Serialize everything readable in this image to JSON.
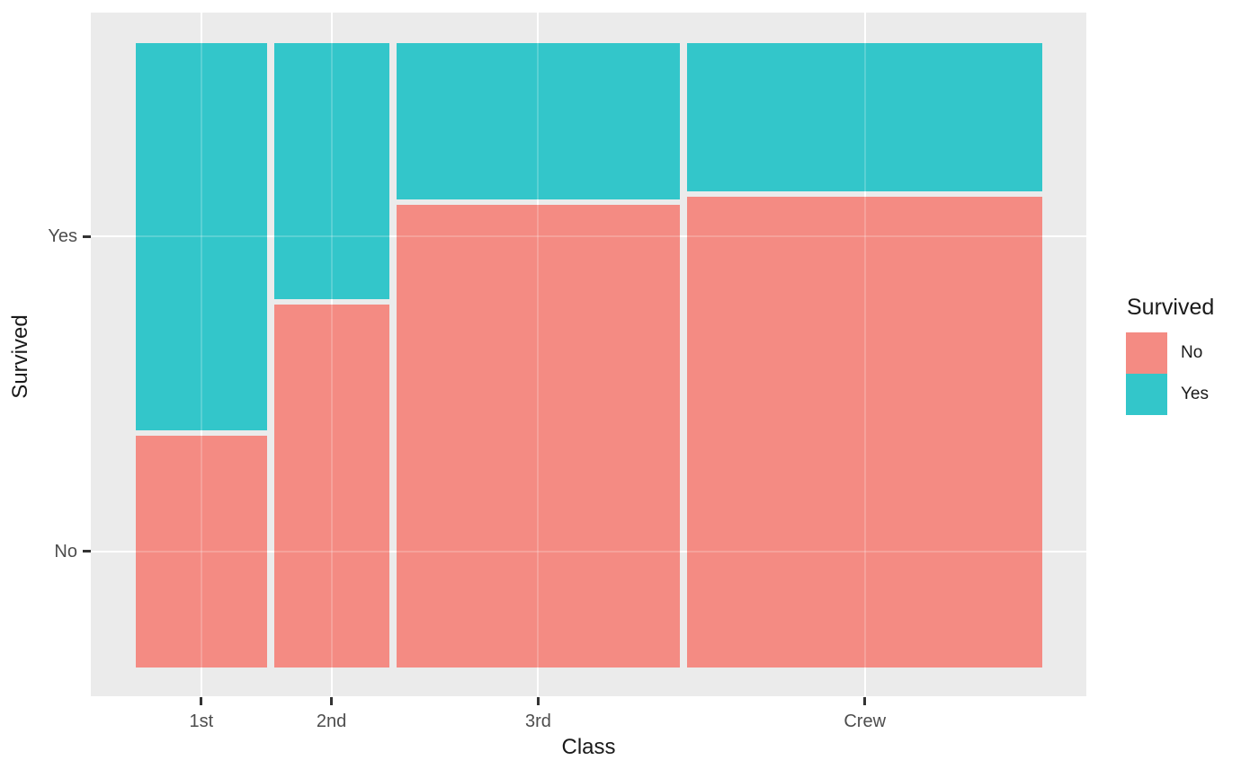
{
  "chart_data": {
    "type": "mosaic",
    "title": "",
    "xlabel": "Class",
    "ylabel": "Survived",
    "x_categories": [
      "1st",
      "2nd",
      "3rd",
      "Crew"
    ],
    "y_categories": [
      "No",
      "Yes"
    ],
    "category_width_proportions": [
      0.148,
      0.13,
      0.321,
      0.401
    ],
    "series": [
      {
        "name": "No",
        "values": [
          0.375,
          0.586,
          0.748,
          0.76
        ]
      },
      {
        "name": "Yes",
        "values": [
          0.625,
          0.414,
          0.252,
          0.24
        ]
      }
    ],
    "colors": {
      "No": "#F48B83",
      "Yes": "#33C6CA"
    },
    "panel_background": "#EBEBEB",
    "gridline_color": "#FFFFFF",
    "axis_text_color": "#4D4D4D",
    "tick_mark_color": "#333333",
    "grid": "major-at-ticks",
    "legend_position": "right",
    "legend": {
      "title": "Survived",
      "entries": [
        {
          "label": "No",
          "color": "#F48B83"
        },
        {
          "label": "Yes",
          "color": "#33C6CA"
        }
      ]
    }
  }
}
